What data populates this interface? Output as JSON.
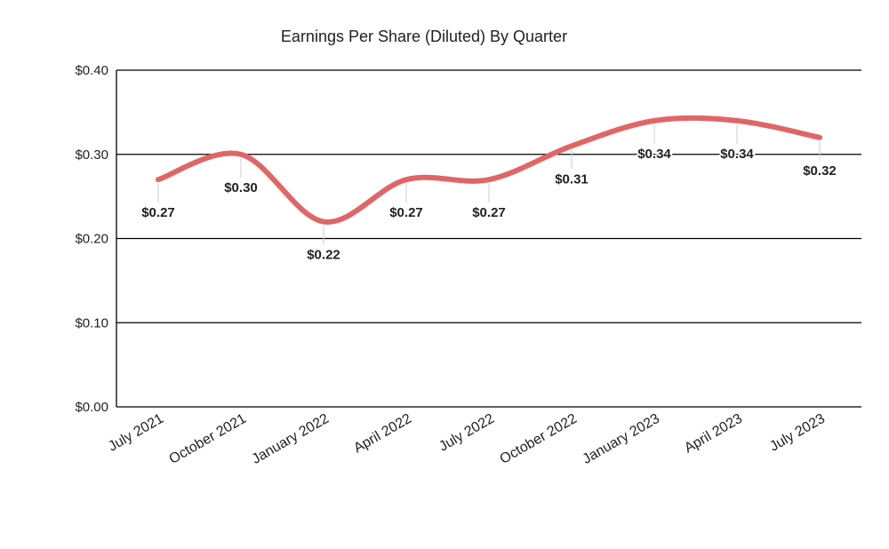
{
  "chart_data": {
    "type": "line",
    "title": "Earnings Per Share (Diluted) By Quarter",
    "xlabel": "",
    "ylabel": "",
    "categories": [
      "July 2021",
      "October 2021",
      "January 2022",
      "April 2022",
      "July 2022",
      "October 2022",
      "January 2023",
      "April 2023",
      "July 2023"
    ],
    "series": [
      {
        "values": [
          0.27,
          0.3,
          0.22,
          0.27,
          0.27,
          0.31,
          0.34,
          0.34,
          0.32
        ],
        "data_labels": [
          "$0.27",
          "$0.30",
          "$0.22",
          "$0.27",
          "$0.27",
          "$0.31",
          "$0.34",
          "$0.34",
          "$0.32"
        ],
        "color": "#e06666"
      }
    ],
    "ylim": [
      0,
      0.4
    ],
    "yticks": [
      0,
      0.1,
      0.2,
      0.3,
      0.4
    ],
    "ytick_labels": [
      "$0.00",
      "$0.10",
      "$0.20",
      "$0.30",
      "$0.40"
    ],
    "grid": true,
    "legend": "none",
    "smooth": true
  }
}
